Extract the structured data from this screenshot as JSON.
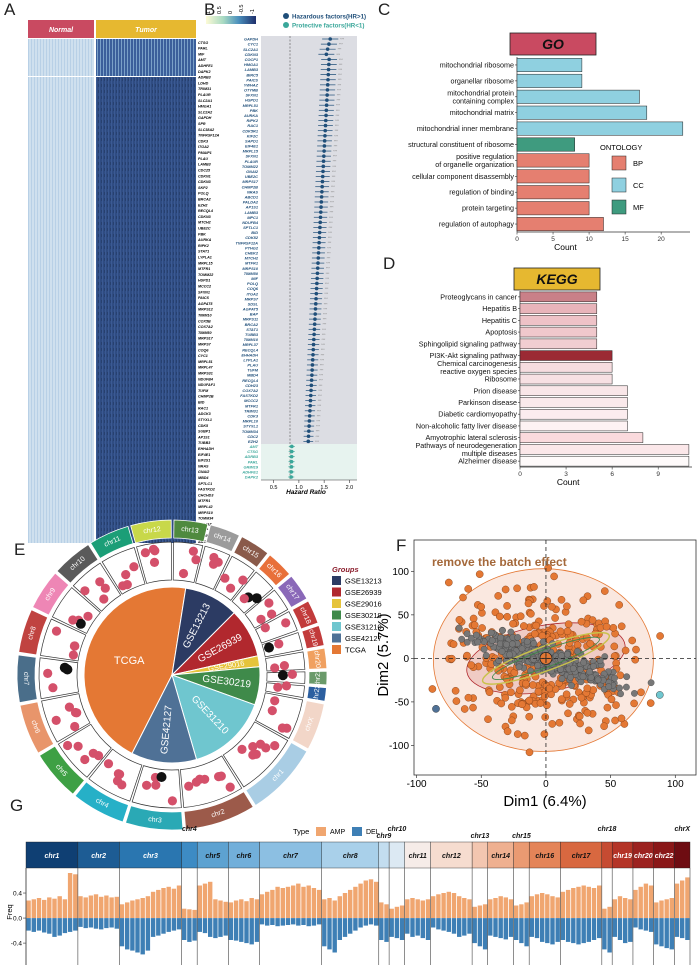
{
  "panels": {
    "A": "A",
    "B": "B",
    "C": "C",
    "D": "D",
    "E": "E",
    "F": "F",
    "G": "G"
  },
  "panel_a": {
    "groups": [
      "Normal",
      "Tumor"
    ],
    "colors": {
      "normal": "#c94a61",
      "tumor": "#e6b830"
    },
    "scale_ticks": [
      "1",
      "0.5",
      "0",
      "-0.5",
      "-1"
    ],
    "genes": [
      "CTSG",
      "PARL",
      "MIF",
      "AMT",
      "ADHFE1",
      "DAPK2",
      "ADRB3",
      "LDHD",
      "TRIM31",
      "PLAUR",
      "SLC2A1",
      "HMGA1",
      "SLC2A2",
      "GAPDH",
      "SPR",
      "SLC38A2",
      "TNFRSF12A",
      "CDK3",
      "ITGA2",
      "PMAIP1",
      "PLAU",
      "LAMB3",
      "CDC25",
      "CDKN1",
      "CDKN3",
      "SKP2",
      "POLQ",
      "BRCA2",
      "EZH2",
      "RECQL4",
      "CDKN3",
      "MTCH2",
      "UBE2C",
      "PBK",
      "AURKA",
      "RIPK2",
      "STAT1",
      "LYPLA1",
      "MRPL15",
      "MTFR1",
      "TOMM22",
      "HSPD1",
      "MCCC2",
      "SFXN1",
      "PAICS",
      "AGPAT5",
      "MRPS12",
      "TIMM10",
      "COX5B",
      "COX7A2",
      "TIMM50",
      "MRPS17",
      "MRPS7",
      "COQ6",
      "CYC1",
      "MRPL51",
      "MRPL47",
      "MRPS31",
      "NDUFB4",
      "NDUFAF1",
      "TUFM",
      "CHMP2B",
      "BID",
      "RAC1",
      "ADCK3",
      "STYXL1",
      "CDK5",
      "SUBP1",
      "AP1S1",
      "TUBB3",
      "EHHADH",
      "EIF4E1",
      "EIF2S1",
      "NRAS",
      "GNAI2",
      "MBD4",
      "SPTLC1",
      "FASTKD2",
      "CHCHD3",
      "MTFR1",
      "MRPL42",
      "MRPS10",
      "TOMM34",
      "YWHAZ",
      "ARFP",
      "ORMDL3",
      "ABCD1"
    ]
  },
  "panel_b": {
    "legend": [
      "Hazardous factors(HR>1)",
      "Protective factors(HR<1)"
    ],
    "colors": {
      "hazard": "#1f4e79",
      "protect": "#3aa79a",
      "band": "#dcdde3",
      "band2": "#e7f3ef"
    },
    "xticks": [
      "0.5",
      "1.0",
      "1.5",
      "2.0"
    ],
    "xlabel": "Hazard Ratio",
    "genes": [
      "GAPDH",
      "CYC1",
      "SLC2A1",
      "CDKN3",
      "COCP1",
      "HMGA1",
      "LAMB3",
      "BIRC5",
      "PAICS",
      "YWHAZ",
      "OTYMB",
      "SFXN1",
      "HSPD1",
      "MRPL51",
      "PBK",
      "AURKA",
      "RIPK2",
      "RAC1",
      "CDK5R1",
      "KIF2C",
      "SAPD1",
      "EIF4E1",
      "MRPL15",
      "SFXN1",
      "PLAUR",
      "TOMM22",
      "GNAI2",
      "UBE2C",
      "MRPS17",
      "CHMP2B",
      "NRAS",
      "ABCD1",
      "PALDA2",
      "AP1S1",
      "LAMB3",
      "MPC1",
      "NDUFB4",
      "SPTLC1",
      "BID",
      "CDK82",
      "TNFRSF12A",
      "PTHG2",
      "CHEK2",
      "MTCH2",
      "MTFR1",
      "MRPS10",
      "TIMM50",
      "MIF",
      "POLQ",
      "COQ6",
      "ITGA2",
      "MRPS7",
      "SDSL",
      "AGPAT5",
      "BAP",
      "MRPS11",
      "BRCA2",
      "STAT1",
      "TUBB3",
      "TIMM10",
      "MRPL37",
      "RECQL4",
      "EHHADH",
      "LYPLA1",
      "PLAU",
      "TUFM",
      "MBD4",
      "RECQL4",
      "CDH23",
      "COX7A2",
      "FASTKD2",
      "MCCC2",
      "MTFR1",
      "TRIM31",
      "CDK3",
      "MRPL10",
      "STYXL1",
      "TOMM34",
      "CDC2",
      "EZH2",
      "AMT",
      "CTSG",
      "ADRB3",
      "PARL",
      "GRIM19",
      "ADHFE1",
      "DAPK2"
    ],
    "n_hazard": 80
  },
  "panel_c": {
    "title": "GO",
    "title_color": "#c94a61",
    "chart_data": {
      "type": "bar",
      "orientation": "horizontal",
      "categories": [
        "mitochondrial ribosome",
        "organellar ribosome",
        "mitochondrial protein containing complex",
        "mitochondrial matrix",
        "mitochondrial inner membrane",
        "structural constituent of ribosome",
        "positive regulation of organelle organization",
        "cellular component disassembly",
        "regulation of binding",
        "protein targeting",
        "regulation of autophagy"
      ],
      "category_lines": [
        [
          "mitochondrial ribosome"
        ],
        [
          "organellar ribosome"
        ],
        [
          "mitochondrial protein",
          "containing complex"
        ],
        [
          "mitochondrial matrix"
        ],
        [
          "mitochondrial inner membrane"
        ],
        [
          "structural constituent of ribosome"
        ],
        [
          "positive regulation",
          "of organelle organization"
        ],
        [
          "cellular component disassembly"
        ],
        [
          "regulation of binding"
        ],
        [
          "protein targeting"
        ],
        [
          "regulation of autophagy"
        ]
      ],
      "values": [
        9,
        9,
        17,
        18,
        23,
        8,
        10,
        10,
        10,
        10,
        12
      ],
      "ontology": [
        "CC",
        "CC",
        "CC",
        "CC",
        "CC",
        "MF",
        "BP",
        "BP",
        "BP",
        "BP",
        "BP"
      ],
      "xlabel": "Count",
      "xticks": [
        0,
        5,
        10,
        15,
        20
      ],
      "xlim": [
        0,
        24
      ],
      "legend_title": "ONTOLOGY",
      "legend": [
        {
          "label": "BP",
          "color": "#e57f70"
        },
        {
          "label": "CC",
          "color": "#8fd0e0"
        },
        {
          "label": "MF",
          "color": "#3f9b7f"
        }
      ]
    }
  },
  "panel_d": {
    "title": "KEGG",
    "title_color": "#e6b830",
    "chart_data": {
      "type": "bar",
      "orientation": "horizontal",
      "categories": [
        "Proteoglycans in cancer",
        "Hepatitis B",
        "Hepatitis C",
        "Apoptosis",
        "Sphingolipid signaling pathway",
        "PI3K-Akt signaling pathway",
        "Chemical carcinogenesis reactive oxygen species",
        "Ribosome",
        "Prion disease",
        "Parkinson disease",
        "Diabetic cardiomyopathy",
        "Non-alcoholic fatty liver disease",
        "Amyotrophic lateral sclerosis",
        "Pathways of neurodegeneration multiple diseases",
        "Alzheimer disease"
      ],
      "category_lines": [
        [
          "Proteoglycans in cancer"
        ],
        [
          "Hepatitis B"
        ],
        [
          "Hepatitis C"
        ],
        [
          "Apoptosis"
        ],
        [
          "Sphingolipid signaling pathway"
        ],
        [
          "PI3K-Akt signaling pathway"
        ],
        [
          "Chemical carcinogenesis",
          "reactive oxygen species"
        ],
        [
          "Ribosome"
        ],
        [
          "Prion disease"
        ],
        [
          "Parkinson disease"
        ],
        [
          "Diabetic cardiomyopathy"
        ],
        [
          "Non-alcoholic fatty liver disease"
        ],
        [
          "Amyotrophic lateral sclerosis"
        ],
        [
          "Pathways of neurodegeneration",
          "multiple diseases"
        ],
        [
          "Alzheimer disease"
        ]
      ],
      "values": [
        5,
        5,
        5,
        5,
        5,
        6,
        6,
        6,
        7,
        7,
        7,
        7,
        8,
        11,
        11
      ],
      "colors": [
        "#c98088",
        "#e8b4ba",
        "#eec2c7",
        "#f0c8cc",
        "#f1cdd1",
        "#9b2a34",
        "#f6dcdf",
        "#f7e0e3",
        "#f9e6e8",
        "#fae9eb",
        "#fbecee",
        "#fdf2f3",
        "#fadadd",
        "#fbe7e9",
        "#fefafa"
      ],
      "xlabel": "Count",
      "xticks": [
        0,
        3,
        6,
        9
      ],
      "xlim": [
        0,
        11.2
      ]
    }
  },
  "panel_e": {
    "legend_title": "Groups",
    "chart_data": {
      "type": "pie",
      "labels": [
        "TCGA",
        "GSE13213",
        "GSE26939",
        "GSE29016",
        "GSE30219",
        "GSE31210",
        "GSE42127"
      ],
      "values": [
        45,
        10,
        9,
        2,
        7,
        15,
        12
      ],
      "colors": [
        "#e47834",
        "#2c3b63",
        "#b1282e",
        "#e6c43b",
        "#3f8a4a",
        "#6fc6cf",
        "#4f7196"
      ]
    },
    "legend": [
      {
        "label": "GSE13213",
        "color": "#2c3b63"
      },
      {
        "label": "GSE26939",
        "color": "#b1282e"
      },
      {
        "label": "GSE29016",
        "color": "#e6c43b"
      },
      {
        "label": "GSE30219",
        "color": "#3f8a4a"
      },
      {
        "label": "GSE31210",
        "color": "#6fc6cf"
      },
      {
        "label": "GSE42127",
        "color": "#4f7196"
      },
      {
        "label": "TCGA",
        "color": "#e47834"
      }
    ],
    "chromosomes": [
      {
        "name": "chr1",
        "size": 22,
        "color": "#a9cde4"
      },
      {
        "name": "chr2",
        "size": 21,
        "color": "#9c5a4a"
      },
      {
        "name": "chr3",
        "size": 17,
        "color": "#2aa9b5"
      },
      {
        "name": "chr4",
        "size": 16,
        "color": "#26b0c7"
      },
      {
        "name": "chr5",
        "size": 15,
        "color": "#3ea044"
      },
      {
        "name": "chr6",
        "size": 15,
        "color": "#e8956b"
      },
      {
        "name": "chr7",
        "size": 14,
        "color": "#4a6e8a"
      },
      {
        "name": "chr8",
        "size": 13,
        "color": "#c04340"
      },
      {
        "name": "chr9",
        "size": 12,
        "color": "#ee86b5"
      },
      {
        "name": "chr10",
        "size": 12,
        "color": "#5a5a5a"
      },
      {
        "name": "chr11",
        "size": 12,
        "color": "#1b9e77"
      },
      {
        "name": "chr12",
        "size": 12,
        "color": "#c8d84a"
      },
      {
        "name": "chr13",
        "size": 10,
        "color": "#4f8a3e"
      },
      {
        "name": "chr14",
        "size": 9,
        "color": "#9b9b9b"
      },
      {
        "name": "chr15",
        "size": 9,
        "color": "#8a5a4a"
      },
      {
        "name": "chr16",
        "size": 8,
        "color": "#e8703a"
      },
      {
        "name": "chr17",
        "size": 8,
        "color": "#8a68b8"
      },
      {
        "name": "chr18",
        "size": 7,
        "color": "#c23b3b"
      },
      {
        "name": "chr19",
        "size": 6,
        "color": "#c23b3b"
      },
      {
        "name": "chr20",
        "size": 6,
        "color": "#f0a060"
      },
      {
        "name": "chr21",
        "size": 4,
        "color": "#6a9a6a"
      },
      {
        "name": "chr22",
        "size": 4,
        "color": "#2c5fa0"
      },
      {
        "name": "chrX",
        "size": 14,
        "color": "#f2d6c8"
      }
    ]
  },
  "panel_f": {
    "title": "remove the batch effect",
    "title_color": "#a4683a",
    "chart_data": {
      "type": "scatter",
      "xlabel": "Dim1 (6.4%)",
      "ylabel": "Dim2 (5.7%)",
      "xlim": [
        -102,
        116
      ],
      "ylim": [
        -134,
        136
      ],
      "xticks": [
        -100,
        -50,
        0,
        50,
        100
      ],
      "yticks": [
        100,
        50,
        0,
        -50,
        -100
      ]
    }
  },
  "panel_g": {
    "legend_title": "Type",
    "legend": [
      {
        "label": "AMP",
        "color": "#f0a670"
      },
      {
        "label": "DEL",
        "color": "#3e7fb5"
      }
    ],
    "ylabel": "Freq",
    "yticks": [
      "0.4",
      "0.0",
      "-0.4"
    ],
    "chart_data": {
      "type": "bar",
      "ylim": [
        -0.75,
        0.8
      ],
      "chromosomes": [
        {
          "name": "chr1",
          "color": "#0f3f73",
          "amp": [
            0.28,
            0.3,
            0.32,
            0.29,
            0.33,
            0.31,
            0.35,
            0.3,
            0.72,
            0.7
          ],
          "del": [
            -0.2,
            -0.22,
            -0.2,
            -0.23,
            -0.25,
            -0.3,
            -0.28,
            -0.24,
            -0.22,
            -0.2
          ]
        },
        {
          "name": "chr2",
          "color": "#1d5c94",
          "amp": [
            0.35,
            0.33,
            0.36,
            0.38,
            0.34,
            0.36,
            0.33,
            0.34
          ],
          "del": [
            -0.14,
            -0.16,
            -0.15,
            -0.17,
            -0.18,
            -0.16,
            -0.15,
            -0.17
          ]
        },
        {
          "name": "chr3",
          "color": "#2a76b0",
          "amp": [
            0.22,
            0.25,
            0.28,
            0.3,
            0.32,
            0.35,
            0.42,
            0.45,
            0.48,
            0.5,
            0.47,
            0.52
          ],
          "del": [
            -0.45,
            -0.5,
            -0.52,
            -0.55,
            -0.58,
            -0.52,
            -0.3,
            -0.28,
            -0.25,
            -0.22,
            -0.2,
            -0.18
          ]
        },
        {
          "name": "chr4",
          "color": "#3d8bc4",
          "amp": [
            0.15,
            0.14,
            0.13
          ],
          "del": [
            -0.35,
            -0.38,
            -0.36
          ]
        },
        {
          "name": "chr5",
          "color": "#5da2d1",
          "amp": [
            0.52,
            0.55,
            0.58,
            0.3,
            0.28,
            0.26
          ],
          "del": [
            -0.22,
            -0.24,
            -0.3,
            -0.32,
            -0.3,
            -0.28
          ]
        },
        {
          "name": "chr6",
          "color": "#72afda",
          "amp": [
            0.25,
            0.28,
            0.3,
            0.27,
            0.32,
            0.3
          ],
          "del": [
            -0.35,
            -0.36,
            -0.38,
            -0.4,
            -0.42,
            -0.38
          ]
        },
        {
          "name": "chr7",
          "color": "#8cbfe2",
          "amp": [
            0.38,
            0.42,
            0.45,
            0.5,
            0.48,
            0.5,
            0.52,
            0.55,
            0.5,
            0.52,
            0.48,
            0.45
          ],
          "del": [
            -0.1,
            -0.12,
            -0.11,
            -0.13,
            -0.12,
            -0.11,
            -0.1,
            -0.12,
            -0.11,
            -0.13,
            -0.12,
            -0.1
          ]
        },
        {
          "name": "chr8",
          "color": "#a9d0ea",
          "amp": [
            0.3,
            0.32,
            0.28,
            0.35,
            0.4,
            0.45,
            0.5,
            0.55,
            0.6,
            0.62,
            0.58
          ],
          "del": [
            -0.45,
            -0.5,
            -0.55,
            -0.35,
            -0.3,
            -0.25,
            -0.2,
            -0.15,
            -0.12,
            -0.1,
            -0.12
          ]
        },
        {
          "name": "chr9",
          "color": "#c3ddef",
          "amp": [
            0.25,
            0.22
          ],
          "del": [
            -0.35,
            -0.38
          ]
        },
        {
          "name": "chr10",
          "color": "#dce9f3",
          "amp": [
            0.15,
            0.18,
            0.2
          ],
          "del": [
            -0.3,
            -0.32,
            -0.35
          ]
        },
        {
          "name": "chr11",
          "color": "#f6ece8",
          "amp": [
            0.3,
            0.32,
            0.3,
            0.28,
            0.3
          ],
          "del": [
            -0.25,
            -0.3,
            -0.28,
            -0.32,
            -0.35
          ]
        },
        {
          "name": "chr12",
          "color": "#f6dccf",
          "amp": [
            0.35,
            0.38,
            0.4,
            0.42,
            0.4,
            0.35,
            0.32,
            0.3
          ],
          "del": [
            -0.15,
            -0.18,
            -0.2,
            -0.22,
            -0.25,
            -0.3,
            -0.28,
            -0.25
          ]
        },
        {
          "name": "chr13",
          "color": "#f3c6b0",
          "amp": [
            0.18,
            0.2,
            0.22
          ],
          "del": [
            -0.4,
            -0.45,
            -0.5
          ]
        },
        {
          "name": "chr14",
          "color": "#efb090",
          "amp": [
            0.3,
            0.32,
            0.35,
            0.33,
            0.3
          ],
          "del": [
            -0.28,
            -0.3,
            -0.32,
            -0.34,
            -0.3
          ]
        },
        {
          "name": "chr15",
          "color": "#ea9a72",
          "amp": [
            0.2,
            0.22,
            0.25
          ],
          "del": [
            -0.35,
            -0.4,
            -0.45
          ]
        },
        {
          "name": "chr16",
          "color": "#e48458",
          "amp": [
            0.35,
            0.38,
            0.4,
            0.38,
            0.35,
            0.33
          ],
          "del": [
            -0.3,
            -0.32,
            -0.38,
            -0.4,
            -0.42,
            -0.38
          ]
        },
        {
          "name": "chr17",
          "color": "#d86840",
          "amp": [
            0.42,
            0.45,
            0.48,
            0.5,
            0.52,
            0.5,
            0.48,
            0.52
          ],
          "del": [
            -0.35,
            -0.38,
            -0.4,
            -0.42,
            -0.4,
            -0.38,
            -0.35,
            -0.32
          ]
        },
        {
          "name": "chr18",
          "color": "#c64b32",
          "amp": [
            0.15,
            0.18
          ],
          "del": [
            -0.5,
            -0.55
          ]
        },
        {
          "name": "chr19",
          "color": "#b43427",
          "amp": [
            0.3,
            0.35,
            0.32,
            0.3
          ],
          "del": [
            -0.3,
            -0.35,
            -0.4,
            -0.38
          ]
        },
        {
          "name": "chr20",
          "color": "#9c2220",
          "amp": [
            0.45,
            0.5,
            0.55,
            0.52
          ],
          "del": [
            -0.15,
            -0.18,
            -0.2,
            -0.22
          ]
        },
        {
          "name": "chr22",
          "color": "#8a1718",
          "amp": [
            0.25,
            0.28,
            0.3,
            0.32
          ],
          "del": [
            -0.42,
            -0.45,
            -0.48,
            -0.5
          ]
        },
        {
          "name": "chrX",
          "color": "#6e0c12",
          "amp": [
            0.55,
            0.6,
            0.65
          ],
          "del": [
            -0.3,
            -0.32,
            -0.35
          ]
        }
      ]
    }
  }
}
